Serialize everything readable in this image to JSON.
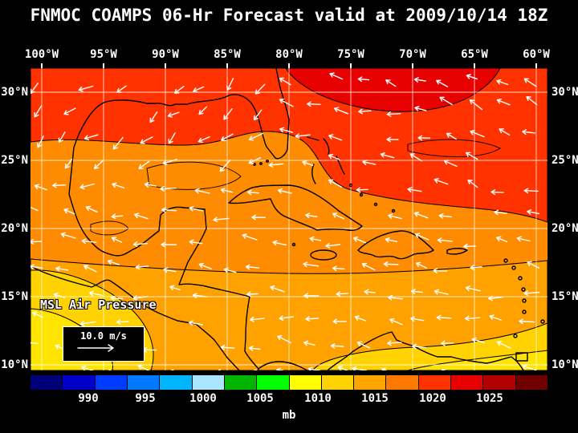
{
  "title": "FNMOC COAMPS 06-Hr Forecast valid at 2009/10/14 18Z",
  "axes": {
    "lon": [
      "100°W",
      "95°W",
      "90°W",
      "85°W",
      "80°W",
      "75°W",
      "70°W",
      "65°W",
      "60°W"
    ],
    "lat_left": [
      "30°N",
      "25°N",
      "20°N",
      "15°N",
      "10°N"
    ],
    "lat_right": [
      "30°N",
      "25°N",
      "20°N",
      "15°N",
      "10°N"
    ]
  },
  "map": {
    "field_label": "MSL Air Pressure",
    "wind_scale_label": "10.0 m/s",
    "pressure_regions": [
      {
        "region": "northern Atlantic (top of map)",
        "pressure_mb": "1015-1020"
      },
      {
        "region": "Gulf of Mexico and Caribbean",
        "pressure_mb": "1010-1015"
      },
      {
        "region": "eastern Pacific and far south / southeast",
        "pressure_mb": "1005-1010"
      }
    ]
  },
  "colorbar": {
    "unit": "mb",
    "tick_labels": [
      "990",
      "995",
      "1000",
      "1005",
      "1010",
      "1015",
      "1020",
      "1025"
    ],
    "segment_colors": [
      "#000078",
      "#0000c8",
      "#003cff",
      "#0078ff",
      "#00b4ff",
      "#aae6ff",
      "#00b400",
      "#00ff00",
      "#ffff00",
      "#ffd200",
      "#ffa500",
      "#ff7800",
      "#ff3200",
      "#e60000",
      "#b00000",
      "#700000"
    ]
  },
  "colors": {
    "background": "#000000",
    "text": "#ffffff",
    "field_base_orange": "#ff8c00",
    "field_light_orange": "#ffa200",
    "field_red": "#ff3200",
    "field_dark_red": "#e60000",
    "field_yellow": "#ffd200",
    "field_bright_yellow": "#ffe400",
    "coastline": "#000000",
    "gridlines": "#ffffff",
    "wind_arrows": "#ffffff"
  }
}
